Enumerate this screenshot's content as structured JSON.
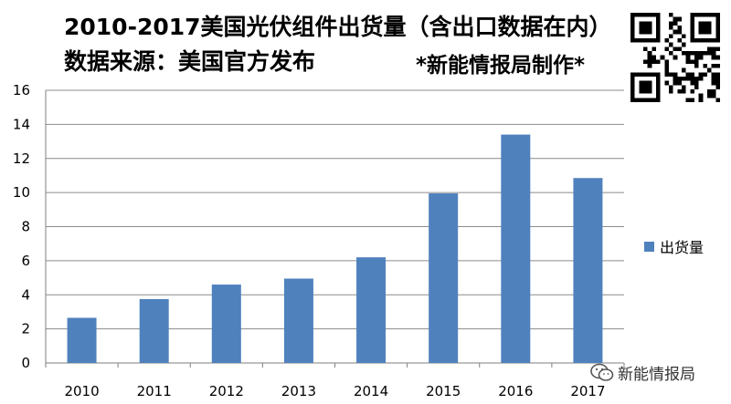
{
  "header": {
    "title_line1": "2010-2017美国光伏组件出货量（含出口数据在内）",
    "title_line2": "数据来源：美国官方发布",
    "credit": "*新能情报局制作*"
  },
  "watermark": {
    "text": "新能情报局"
  },
  "chart_data": {
    "type": "bar",
    "categories": [
      "2010",
      "2011",
      "2012",
      "2013",
      "2014",
      "2015",
      "2016",
      "2017"
    ],
    "series": [
      {
        "name": "出货量",
        "values": [
          2.65,
          3.75,
          4.6,
          4.95,
          6.2,
          9.95,
          13.4,
          10.85
        ],
        "color": "#4f81bd"
      }
    ],
    "ylim": [
      0,
      16
    ],
    "yticks": [
      "0",
      "2",
      "4",
      "6",
      "8",
      "10",
      "12",
      "14",
      "16"
    ],
    "grid": true,
    "legend": "right"
  }
}
